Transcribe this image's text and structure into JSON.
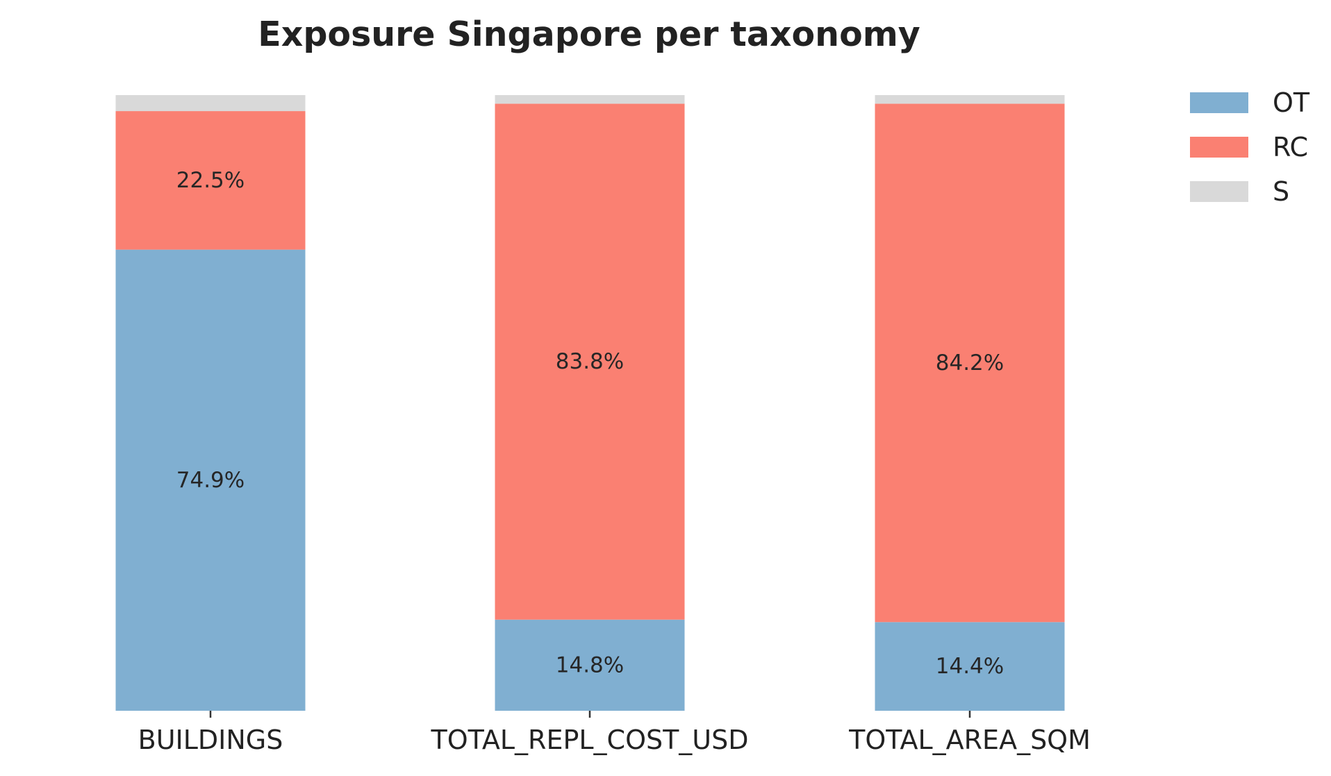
{
  "chart_data": {
    "type": "bar",
    "stacked": true,
    "normalized": true,
    "title": "Exposure Singapore per taxonomy",
    "xlabel": "",
    "ylabel": "",
    "ylim": [
      0,
      1
    ],
    "grid": false,
    "legend_position": "top-right",
    "categories": [
      "BUILDINGS",
      "TOTAL_REPL_COST_USD",
      "TOTAL_AREA_SQM"
    ],
    "series": [
      {
        "name": "OT",
        "color": "#80afd1",
        "values": [
          0.749,
          0.148,
          0.144
        ],
        "labels": [
          "74.9%",
          "14.8%",
          "14.4%"
        ]
      },
      {
        "name": "RC",
        "color": "#fa8072",
        "values": [
          0.225,
          0.838,
          0.842
        ],
        "labels": [
          "22.5%",
          "83.8%",
          "84.2%"
        ]
      },
      {
        "name": "S",
        "color": "#d9d9d9",
        "values": [
          0.026,
          0.014,
          0.014
        ],
        "labels": [
          "",
          "",
          ""
        ]
      }
    ]
  }
}
